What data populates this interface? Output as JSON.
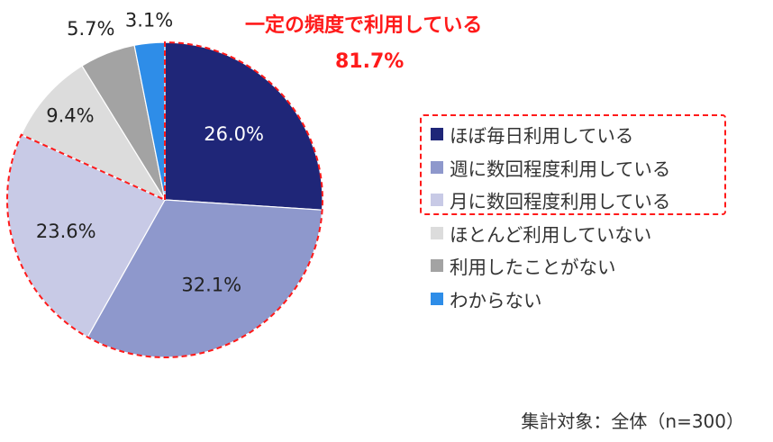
{
  "callout": {
    "title": "一定の頻度で利用している",
    "value": "81.7%"
  },
  "footnote": "集計対象：全体（n=300）",
  "chart_data": {
    "type": "pie",
    "slices": [
      {
        "label": "ほぼ毎日利用している",
        "value": 26.0,
        "display": "26.0%",
        "color": "#1f2678"
      },
      {
        "label": "週に数回程度利用している",
        "value": 32.1,
        "display": "32.1%",
        "color": "#8e98cc"
      },
      {
        "label": "月に数回程度利用している",
        "value": 23.6,
        "display": "23.6%",
        "color": "#c8cae6"
      },
      {
        "label": "ほとんど利用していない",
        "value": 9.4,
        "display": "9.4%",
        "color": "#dcdcdc"
      },
      {
        "label": "利用したことがない",
        "value": 5.7,
        "display": "5.7%",
        "color": "#a3a3a3"
      },
      {
        "label": "わからない",
        "value": 3.1,
        "display": "3.1%",
        "color": "#2e8de8"
      }
    ],
    "highlight": {
      "slices": [
        "ほぼ毎日利用している",
        "週に数回程度利用している",
        "月に数回程度利用している"
      ],
      "outline_color": "#ff1a1a",
      "outline_style": "dashed"
    },
    "legend_position": "right"
  }
}
